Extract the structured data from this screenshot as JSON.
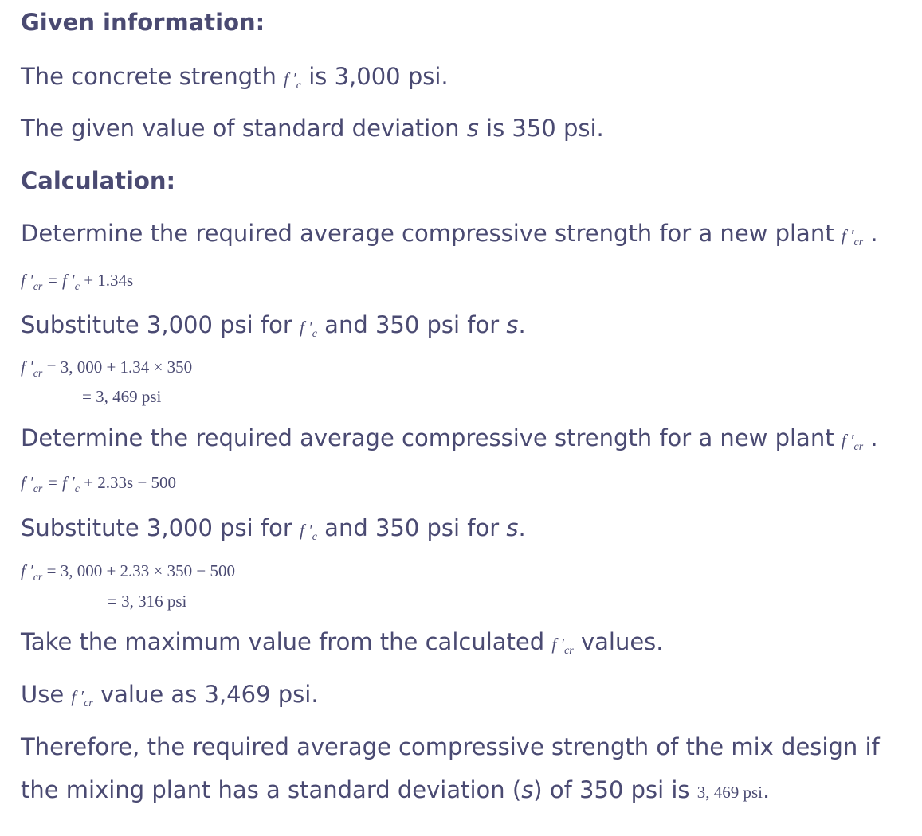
{
  "given_heading": "Given information:",
  "given_1": {
    "pre": "The concrete strength ",
    "sym": "f ′",
    "sub": "c",
    "post": " is 3,000 psi."
  },
  "given_2": {
    "pre": "The given value of standard deviation ",
    "sym": "s",
    "post": " is 350 psi."
  },
  "calc_heading": "Calculation:",
  "step1": {
    "pre": "Determine the required average compressive strength for a new plant ",
    "sym": "f ′",
    "sub": "cr",
    "post": " ."
  },
  "eq1": {
    "lhs": "f ′",
    "lhs_sub": "cr",
    "rhs1": " = f ′",
    "rhs1_sub": "c",
    "rhs2": " + 1.34s"
  },
  "sub1": {
    "pre": "Substitute 3,000 psi for ",
    "sym": "f ′",
    "sub": "c",
    "mid": " and 350 psi for ",
    "sym2": "s",
    "post": "."
  },
  "eq2": {
    "lhs": "f ′",
    "lhs_sub": "cr",
    "line1": " = 3, 000 + 1.34 × 350",
    "line2": "= 3, 469 psi"
  },
  "step2": {
    "pre": "Determine the required average compressive strength for a new plant ",
    "sym": "f ′",
    "sub": "cr",
    "post": " ."
  },
  "eq3": {
    "lhs": "f ′",
    "lhs_sub": "cr",
    "rhs1": " = f ′",
    "rhs1_sub": "c",
    "rhs2": " + 2.33s − 500"
  },
  "sub2": {
    "pre": "Substitute 3,000 psi for ",
    "sym": "f ′",
    "sub": "c",
    "mid": " and 350 psi for ",
    "sym2": "s",
    "post": "."
  },
  "eq4": {
    "lhs": "f ′",
    "lhs_sub": "cr",
    "line1": " = 3, 000 + 2.33 × 350 − 500",
    "line2": "= 3, 316 psi"
  },
  "take": {
    "pre": "Take the maximum value from the calculated ",
    "sym": "f ′",
    "sub": "cr",
    "post": " values."
  },
  "use": {
    "pre": "Use ",
    "sym": "f ′",
    "sub": "cr",
    "post": " value as 3,469 psi."
  },
  "conclusion": {
    "line1": "Therefore, the required average compressive strength of the mix design if",
    "pre": "the mixing plant has a standard deviation (",
    "sym": "s",
    "mid": ") of 350 psi is ",
    "answer": "3, 469 psi",
    "post": "."
  }
}
